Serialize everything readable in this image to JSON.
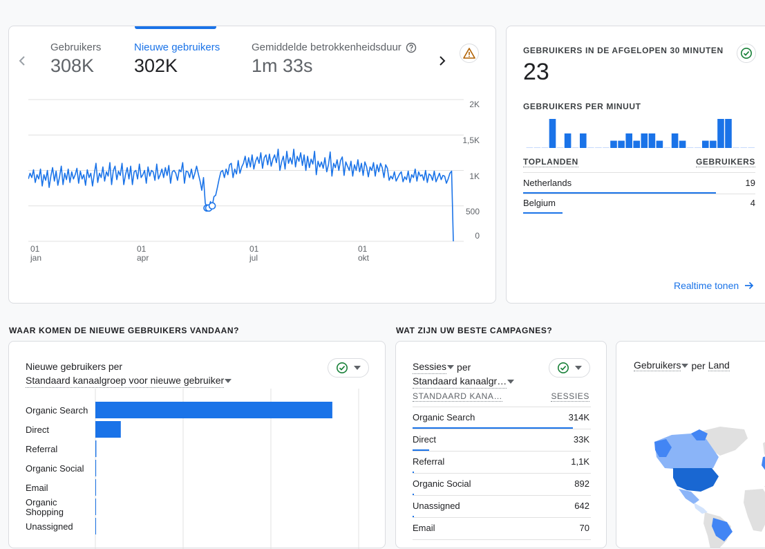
{
  "overview": {
    "metrics": [
      {
        "label": "Gebruikers",
        "value": "308K"
      },
      {
        "label": "Nieuwe gebruikers",
        "value": "302K"
      },
      {
        "label": "Gemiddelde betrokkenheidsduur",
        "value": "1m 33s"
      }
    ],
    "active_metric_index": 1,
    "chart_data": {
      "type": "line",
      "series": [
        {
          "values": [
            880,
            960,
            900,
            1010,
            830,
            940,
            880,
            1020,
            780,
            940,
            860,
            1000,
            760,
            920,
            1040,
            850,
            990,
            790,
            910,
            1060,
            800,
            960,
            870,
            1020,
            830,
            980,
            880,
            940,
            1030,
            820,
            990,
            880,
            940,
            790,
            1010,
            900,
            960,
            780,
            950,
            1100,
            830,
            960,
            900,
            1050,
            850,
            980,
            920,
            1110,
            800,
            1000,
            1060,
            870,
            990,
            930,
            1100,
            800,
            940,
            1040,
            880,
            1060,
            800,
            980,
            1000,
            880,
            1090,
            900,
            940,
            1000,
            820,
            1050,
            920,
            1000,
            980,
            860,
            1090,
            880,
            940,
            1020,
            900,
            1040,
            930,
            1070,
            820,
            980,
            1000,
            960,
            860,
            1010,
            980,
            1110,
            820,
            990,
            980,
            900,
            1020,
            880,
            960,
            1060,
            950,
            850,
            720,
            900,
            540,
            470,
            470,
            560,
            500,
            630,
            650,
            760,
            880,
            980,
            1000,
            900,
            1020,
            940,
            1080,
            1100,
            900,
            1020,
            950,
            1140,
            960,
            1050,
            1100,
            1200,
            1040,
            1180,
            1050,
            1220,
            1020,
            1130,
            1190,
            1100,
            1250,
            1030,
            1180,
            1220,
            1080,
            1230,
            1060,
            1160,
            1220,
            1110,
            1300,
            1000,
            1120,
            1200,
            1020,
            1270,
            1100,
            1180,
            1090,
            1300,
            1050,
            1200,
            1130,
            1250,
            1070,
            1220,
            1000,
            1200,
            1040,
            1160,
            1090,
            1270,
            940,
            1130,
            1050,
            1120,
            1030,
            1180,
            980,
            1080,
            1260,
            920,
            1100,
            1040,
            1150,
            1000,
            1140,
            1190,
            930,
            1120,
            1060,
            1000,
            1130,
            920,
            1080,
            1000,
            1150,
            980,
            1100,
            930,
            1120,
            1050,
            910,
            1050,
            1000,
            1110,
            920,
            1080,
            980,
            1100,
            1040,
            900,
            1080,
            1030,
            860,
            920,
            880,
            980,
            850,
            900,
            950,
            980,
            840,
            910,
            870,
            990,
            830,
            940,
            900,
            1020,
            850,
            980,
            920,
            940,
            860,
            1000,
            830,
            950,
            930,
            860,
            990,
            840,
            900,
            960,
            870,
            930,
            920,
            820,
            880,
            960,
            990,
            0
          ]
        }
      ],
      "ylim": [
        0,
        2000
      ],
      "yticks": [
        "2K",
        "1,5K",
        "1K",
        "500",
        "0"
      ],
      "xticks": [
        {
          "day": "01",
          "month": "jan"
        },
        {
          "day": "01",
          "month": "apr"
        },
        {
          "day": "01",
          "month": "jul"
        },
        {
          "day": "01",
          "month": "okt"
        }
      ],
      "grid": true
    }
  },
  "realtime": {
    "title": "GEBRUIKERS IN DE AFGELOPEN 30 MINUTEN",
    "value": "23",
    "per_minute_label": "GEBRUIKERS PER MINUUT",
    "per_minute_values": [
      0,
      0,
      0,
      2,
      0,
      1,
      0,
      1,
      0,
      0,
      0,
      0.5,
      0.5,
      1,
      0.5,
      1,
      1,
      0.5,
      0,
      1,
      0.5,
      0,
      0,
      0.5,
      0.5,
      2,
      2,
      0,
      0,
      0
    ],
    "table_headers": [
      "TOPLANDEN",
      "GEBRUIKERS"
    ],
    "rows": [
      {
        "label": "Netherlands",
        "value": "19",
        "share": 0.83
      },
      {
        "label": "Belgium",
        "value": "4",
        "share": 0.17
      }
    ],
    "link_label": "Realtime tonen"
  },
  "acquisition": {
    "section_title": "WAAR KOMEN DE NIEUWE GEBRUIKERS VANDAAN?",
    "title_line1": "Nieuwe gebruikers per",
    "title_line2": "Standaard kanaalgroep voor nieuwe gebruiker",
    "chart_data": {
      "type": "bar",
      "orientation": "horizontal",
      "categories": [
        "Organic Search",
        "Direct",
        "Referral",
        "Organic Social",
        "Email",
        "Organic\nShopping",
        "Unassigned"
      ],
      "category_lines": [
        [
          "Organic Search"
        ],
        [
          "Direct"
        ],
        [
          "Referral"
        ],
        [
          "Organic Social"
        ],
        [
          "Email"
        ],
        [
          "Organic",
          "Shopping"
        ],
        [
          "Unassigned"
        ]
      ],
      "values": [
        270000,
        29000,
        1100,
        880,
        70,
        30,
        640
      ],
      "xlim": [
        0,
        300000
      ],
      "grid": true
    }
  },
  "campaigns": {
    "section_title": "WAT ZIJN UW BESTE CAMPAGNES?",
    "title_metric": "Sessies",
    "title_per": "per",
    "title_dimension": "Standaard kanaalgr…",
    "headers": [
      "STANDAARD KANA…",
      "SESSIES"
    ],
    "rows": [
      {
        "label": "Organic Search",
        "value": "314K",
        "share": 1.0
      },
      {
        "label": "Direct",
        "value": "33K",
        "share": 0.105
      },
      {
        "label": "Referral",
        "value": "1,1K",
        "share": 0.004
      },
      {
        "label": "Organic Social",
        "value": "892",
        "share": 0.003
      },
      {
        "label": "Unassigned",
        "value": "642",
        "share": 0.002
      },
      {
        "label": "Email",
        "value": "70",
        "share": 0.0
      }
    ]
  },
  "geo": {
    "title_metric": "Gebruikers",
    "title_per": "per",
    "title_dimension": "Land"
  },
  "colors": {
    "primary": "#1a73e8",
    "success": "#188038",
    "warning": "#b06000",
    "text": "#202124",
    "muted": "#5f6368",
    "border": "#dadce0"
  }
}
